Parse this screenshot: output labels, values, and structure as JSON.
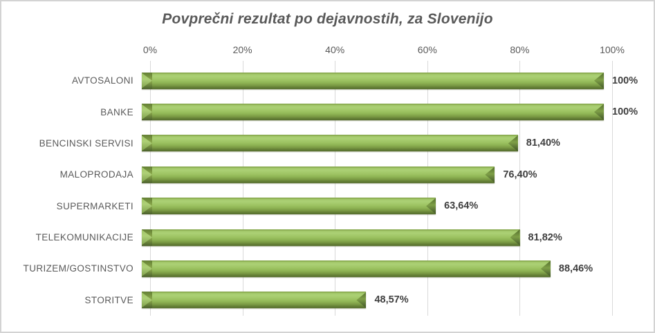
{
  "chart_data": {
    "type": "bar",
    "orientation": "horizontal",
    "title": "Povprečni rezultat po dejavnostih, za Slovenijo",
    "categories": [
      "AVTOSALONI",
      "BANKE",
      "BENCINSKI SERVISI",
      "MALOPRODAJA",
      "SUPERMARKETI",
      "TELEKOMUNIKACIJE",
      "TURIZEM/GOSTINSTVO",
      "STORITVE"
    ],
    "values": [
      100,
      100,
      81.4,
      76.4,
      63.64,
      81.82,
      88.46,
      48.57
    ],
    "value_labels": [
      "100%",
      "100%",
      "81,40%",
      "76,40%",
      "63,64%",
      "81,82%",
      "88,46%",
      "48,57%"
    ],
    "x_ticks": [
      "0%",
      "20%",
      "40%",
      "60%",
      "80%",
      "100%"
    ],
    "x_tick_values": [
      0,
      20,
      40,
      60,
      80,
      100
    ],
    "xlim": [
      0,
      100
    ],
    "axis_position": "top",
    "grid": true,
    "legend": false,
    "colors": {
      "bar_main": "#9bbb59",
      "bar_highlight": "#abd074",
      "bar_shadow": "#566e2e",
      "gridline": "#d9d9d9",
      "title_text": "#595959",
      "axis_text": "#595959",
      "value_label_text": "#3f3f3f",
      "chart_border": "#d3d3d3",
      "background": "#ffffff"
    }
  }
}
